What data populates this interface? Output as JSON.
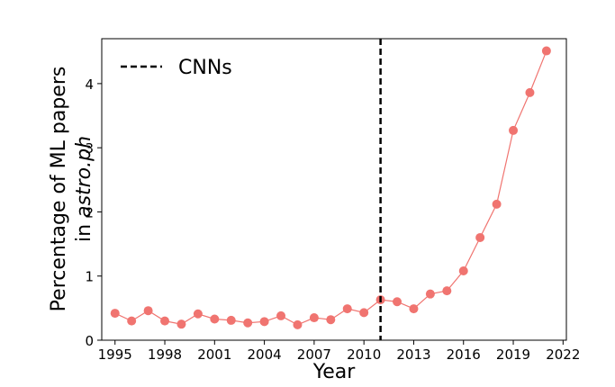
{
  "chart_data": {
    "type": "line",
    "xlabel": "Year",
    "ylabel_line1": "Percentage of ML papers",
    "ylabel_line2_prefix": "in ",
    "ylabel_line2_italic": "astro.ph",
    "xlim": [
      1994.2,
      2022.2
    ],
    "ylim": [
      0,
      4.7
    ],
    "x_ticks": [
      1995,
      1998,
      2001,
      2004,
      2007,
      2010,
      2013,
      2016,
      2019,
      2022
    ],
    "y_ticks": [
      0,
      1,
      2,
      3,
      4
    ],
    "grid": false,
    "legend_position": "top-left",
    "series": [
      {
        "color": "#f07470",
        "marker": "circle",
        "x": [
          1995,
          1996,
          1997,
          1998,
          1999,
          2000,
          2001,
          2002,
          2003,
          2004,
          2005,
          2006,
          2007,
          2008,
          2009,
          2010,
          2011,
          2012,
          2013,
          2014,
          2015,
          2016,
          2017,
          2018,
          2019,
          2020,
          2021
        ],
        "y": [
          0.42,
          0.3,
          0.46,
          0.3,
          0.25,
          0.41,
          0.33,
          0.31,
          0.27,
          0.29,
          0.38,
          0.24,
          0.35,
          0.32,
          0.49,
          0.43,
          0.63,
          0.6,
          0.49,
          0.72,
          0.77,
          1.08,
          1.6,
          2.12,
          3.27,
          3.86,
          4.51
        ]
      }
    ],
    "vline": {
      "x": 2011,
      "label": "CNNs",
      "style": "dashed",
      "color": "#000000"
    }
  }
}
